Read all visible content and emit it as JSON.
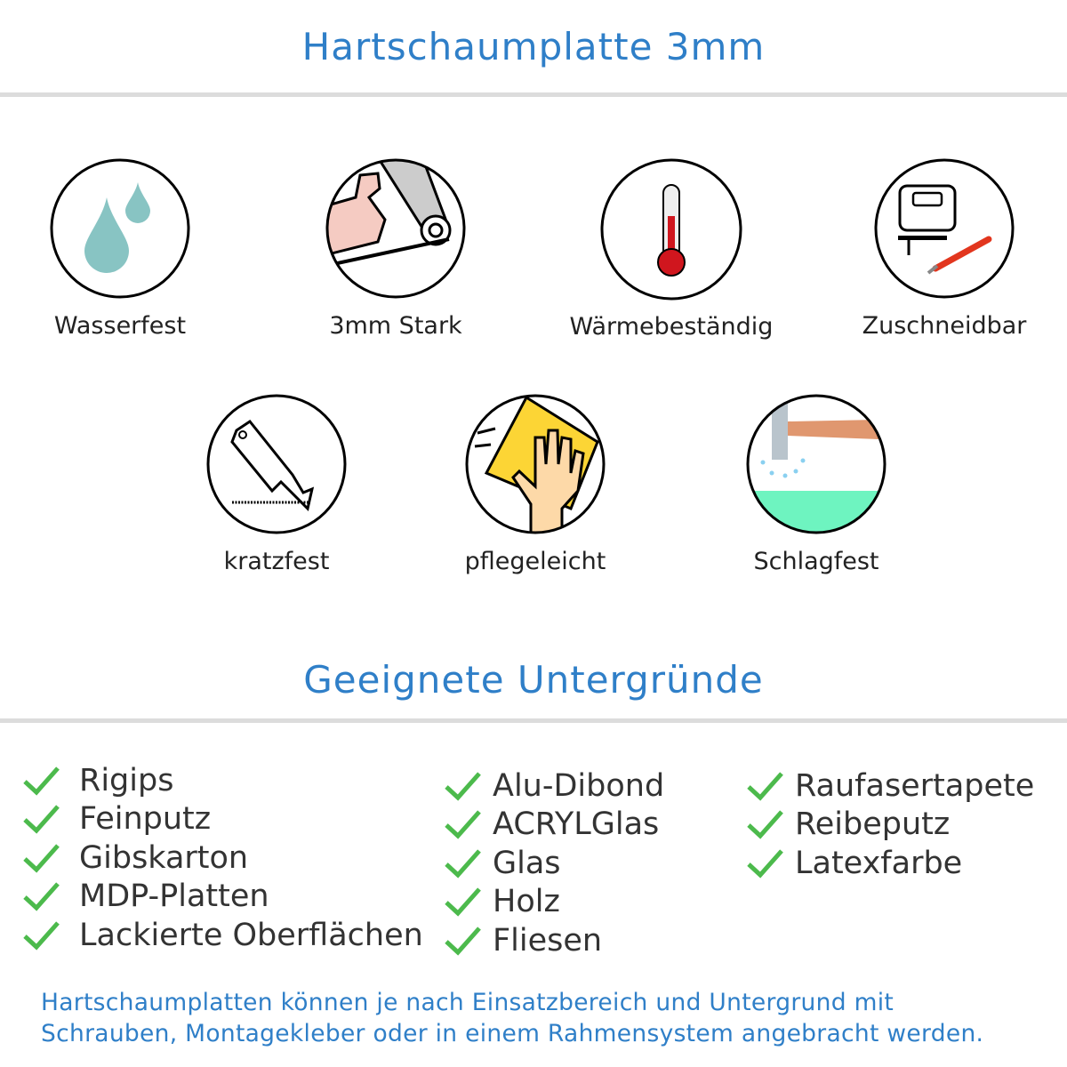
{
  "header": {
    "title": "Hartschaumplatte 3mm"
  },
  "features": [
    {
      "label": "Wasserfest",
      "icon": "water-drops-icon"
    },
    {
      "label": "3mm Stark",
      "icon": "strong-arm-icon"
    },
    {
      "label": "Wärmebeständig",
      "icon": "thermometer-icon"
    },
    {
      "label": "Zuschneidbar",
      "icon": "jigsaw-cutter-icon"
    },
    {
      "label": "kratzfest",
      "icon": "box-cutter-icon"
    },
    {
      "label": "pflegeleicht",
      "icon": "hand-sponge-icon"
    },
    {
      "label": "Schlagfest",
      "icon": "hammer-icon"
    }
  ],
  "surfaces": {
    "title": "Geeignete Untergründe",
    "columns": [
      [
        "Rigips",
        "Feinputz",
        "Gibskarton",
        "MDP-Platten",
        "Lackierte Oberflächen"
      ],
      [
        "Alu-Dibond",
        "ACRYLGlas",
        "Glas",
        "Holz",
        "Fliesen"
      ],
      [
        "Raufasertapete",
        "Reibeputz",
        "Latexfarbe"
      ]
    ]
  },
  "footer": {
    "line1": "Hartschaumplatten können je nach Einsatzbereich und Untergrund mit",
    "line2": "Schrauben, Montagekleber oder in einem Rahmensystem angebracht werden."
  },
  "colors": {
    "accent": "#2f7fc8",
    "check": "#4cba4c",
    "rule": "#dcdcdc"
  }
}
